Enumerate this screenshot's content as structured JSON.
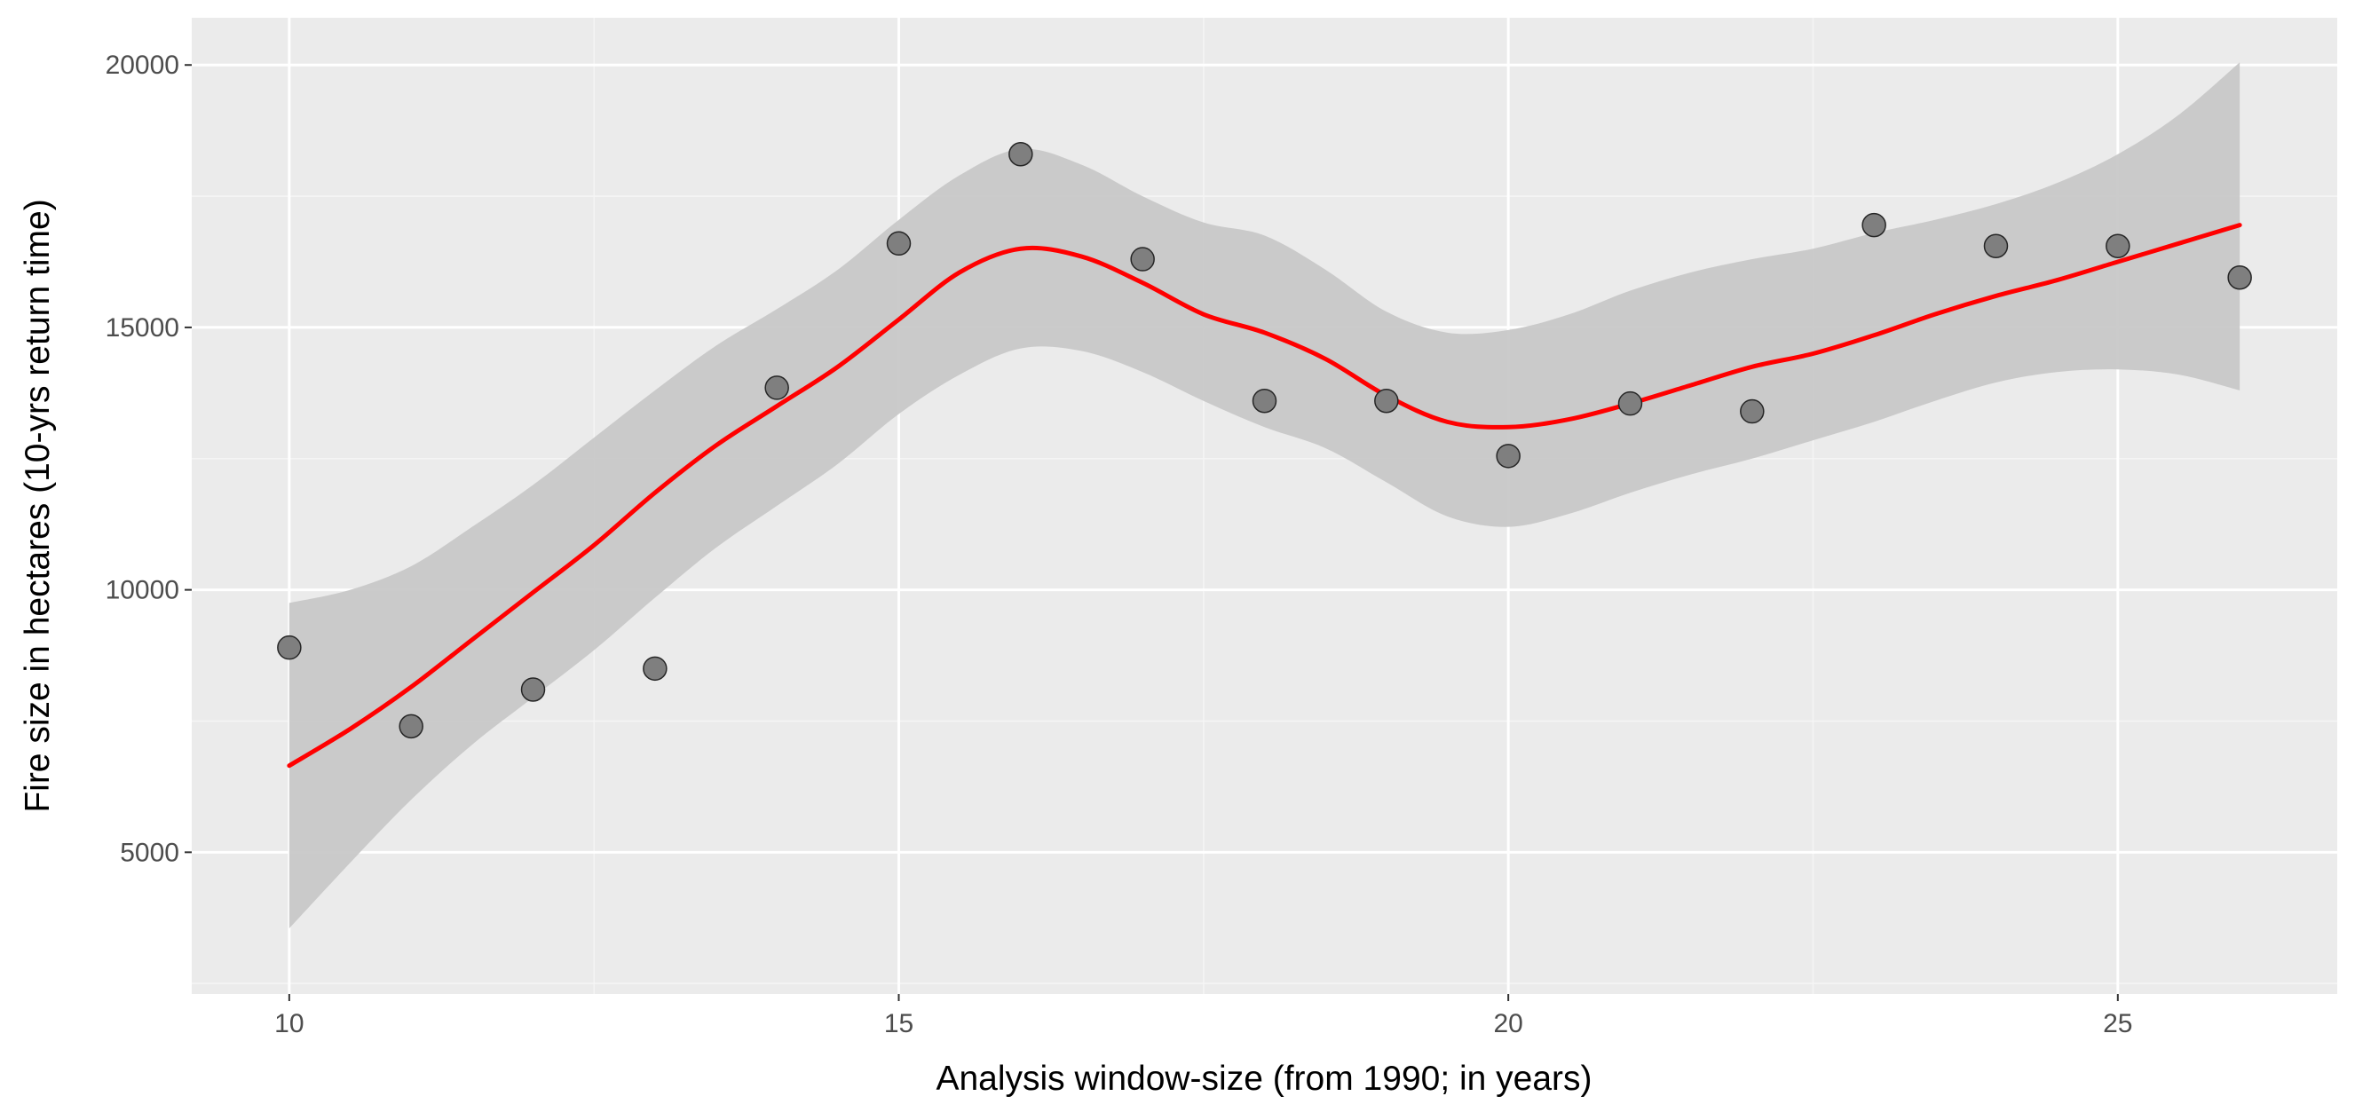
{
  "chart_data": {
    "type": "scatter",
    "xlabel": "Analysis window-size (from 1990; in years)",
    "ylabel": "Fire size in hectares (10-yrs return time)",
    "xlim": [
      9.2,
      26.8
    ],
    "ylim": [
      2300,
      20900
    ],
    "x_ticks": [
      10,
      15,
      20,
      25
    ],
    "y_ticks": [
      5000,
      10000,
      15000,
      20000
    ],
    "x_tick_labels": [
      "10",
      "15",
      "20",
      "25"
    ],
    "y_tick_labels": [
      "5000",
      "10000",
      "15000",
      "20000"
    ],
    "grid": true,
    "series": [
      {
        "type": "scatter",
        "x": [
          10,
          11,
          12,
          13,
          14,
          15,
          16,
          17,
          18,
          19,
          20,
          21,
          22,
          23,
          24,
          25,
          26
        ],
        "y": [
          8900,
          7400,
          8100,
          8500,
          13850,
          16600,
          18300,
          16300,
          13600,
          13600,
          12550,
          13550,
          13400,
          16950,
          16550,
          16550,
          15950
        ]
      },
      {
        "type": "line",
        "x": [
          10,
          10.5,
          11,
          11.5,
          12,
          12.5,
          13,
          13.5,
          14,
          14.5,
          15,
          15.5,
          16,
          16.5,
          17,
          17.5,
          18,
          18.5,
          19,
          19.5,
          20,
          20.5,
          21,
          21.5,
          22,
          22.5,
          23,
          23.5,
          24,
          24.5,
          25,
          25.5,
          26
        ],
        "y": [
          6650,
          7350,
          8150,
          9050,
          9950,
          10850,
          11850,
          12750,
          13500,
          14250,
          15150,
          16050,
          16500,
          16350,
          15850,
          15250,
          14900,
          14400,
          13700,
          13200,
          13100,
          13250,
          13550,
          13900,
          14250,
          14500,
          14850,
          15250,
          15600,
          15900,
          16250,
          16600,
          16950
        ]
      },
      {
        "type": "area",
        "x": [
          10,
          10.5,
          11,
          11.5,
          12,
          12.5,
          13,
          13.5,
          14,
          14.5,
          15,
          15.5,
          16,
          16.5,
          17,
          17.5,
          18,
          18.5,
          19,
          19.5,
          20,
          20.5,
          21,
          21.5,
          22,
          22.5,
          23,
          23.5,
          24,
          24.5,
          25,
          25.5,
          26
        ],
        "y_upper": [
          9750,
          10000,
          10450,
          11200,
          12000,
          12900,
          13800,
          14650,
          15350,
          16100,
          17050,
          17900,
          18400,
          18100,
          17500,
          17000,
          16750,
          16100,
          15300,
          14900,
          14950,
          15250,
          15700,
          16050,
          16300,
          16500,
          16800,
          17050,
          17350,
          17750,
          18300,
          19050,
          20050
        ],
        "y_lower": [
          3550,
          4800,
          6000,
          7050,
          7950,
          8850,
          9850,
          10800,
          11600,
          12400,
          13350,
          14100,
          14600,
          14550,
          14150,
          13600,
          13100,
          12700,
          12050,
          11400,
          11200,
          11450,
          11850,
          12200,
          12500,
          12850,
          13200,
          13600,
          13950,
          14150,
          14200,
          14100,
          13800
        ]
      }
    ],
    "colors": {
      "panel_background": "#ebebeb",
      "grid_major": "#ffffff",
      "grid_minor": "#f5f5f5",
      "points_fill": "#7f7f7f",
      "points_stroke": "#262626",
      "smooth_line": "#ff0000",
      "ribbon": "#c8c8c8",
      "tick_label": "#4d4d4d",
      "axis_title": "#000000"
    }
  }
}
